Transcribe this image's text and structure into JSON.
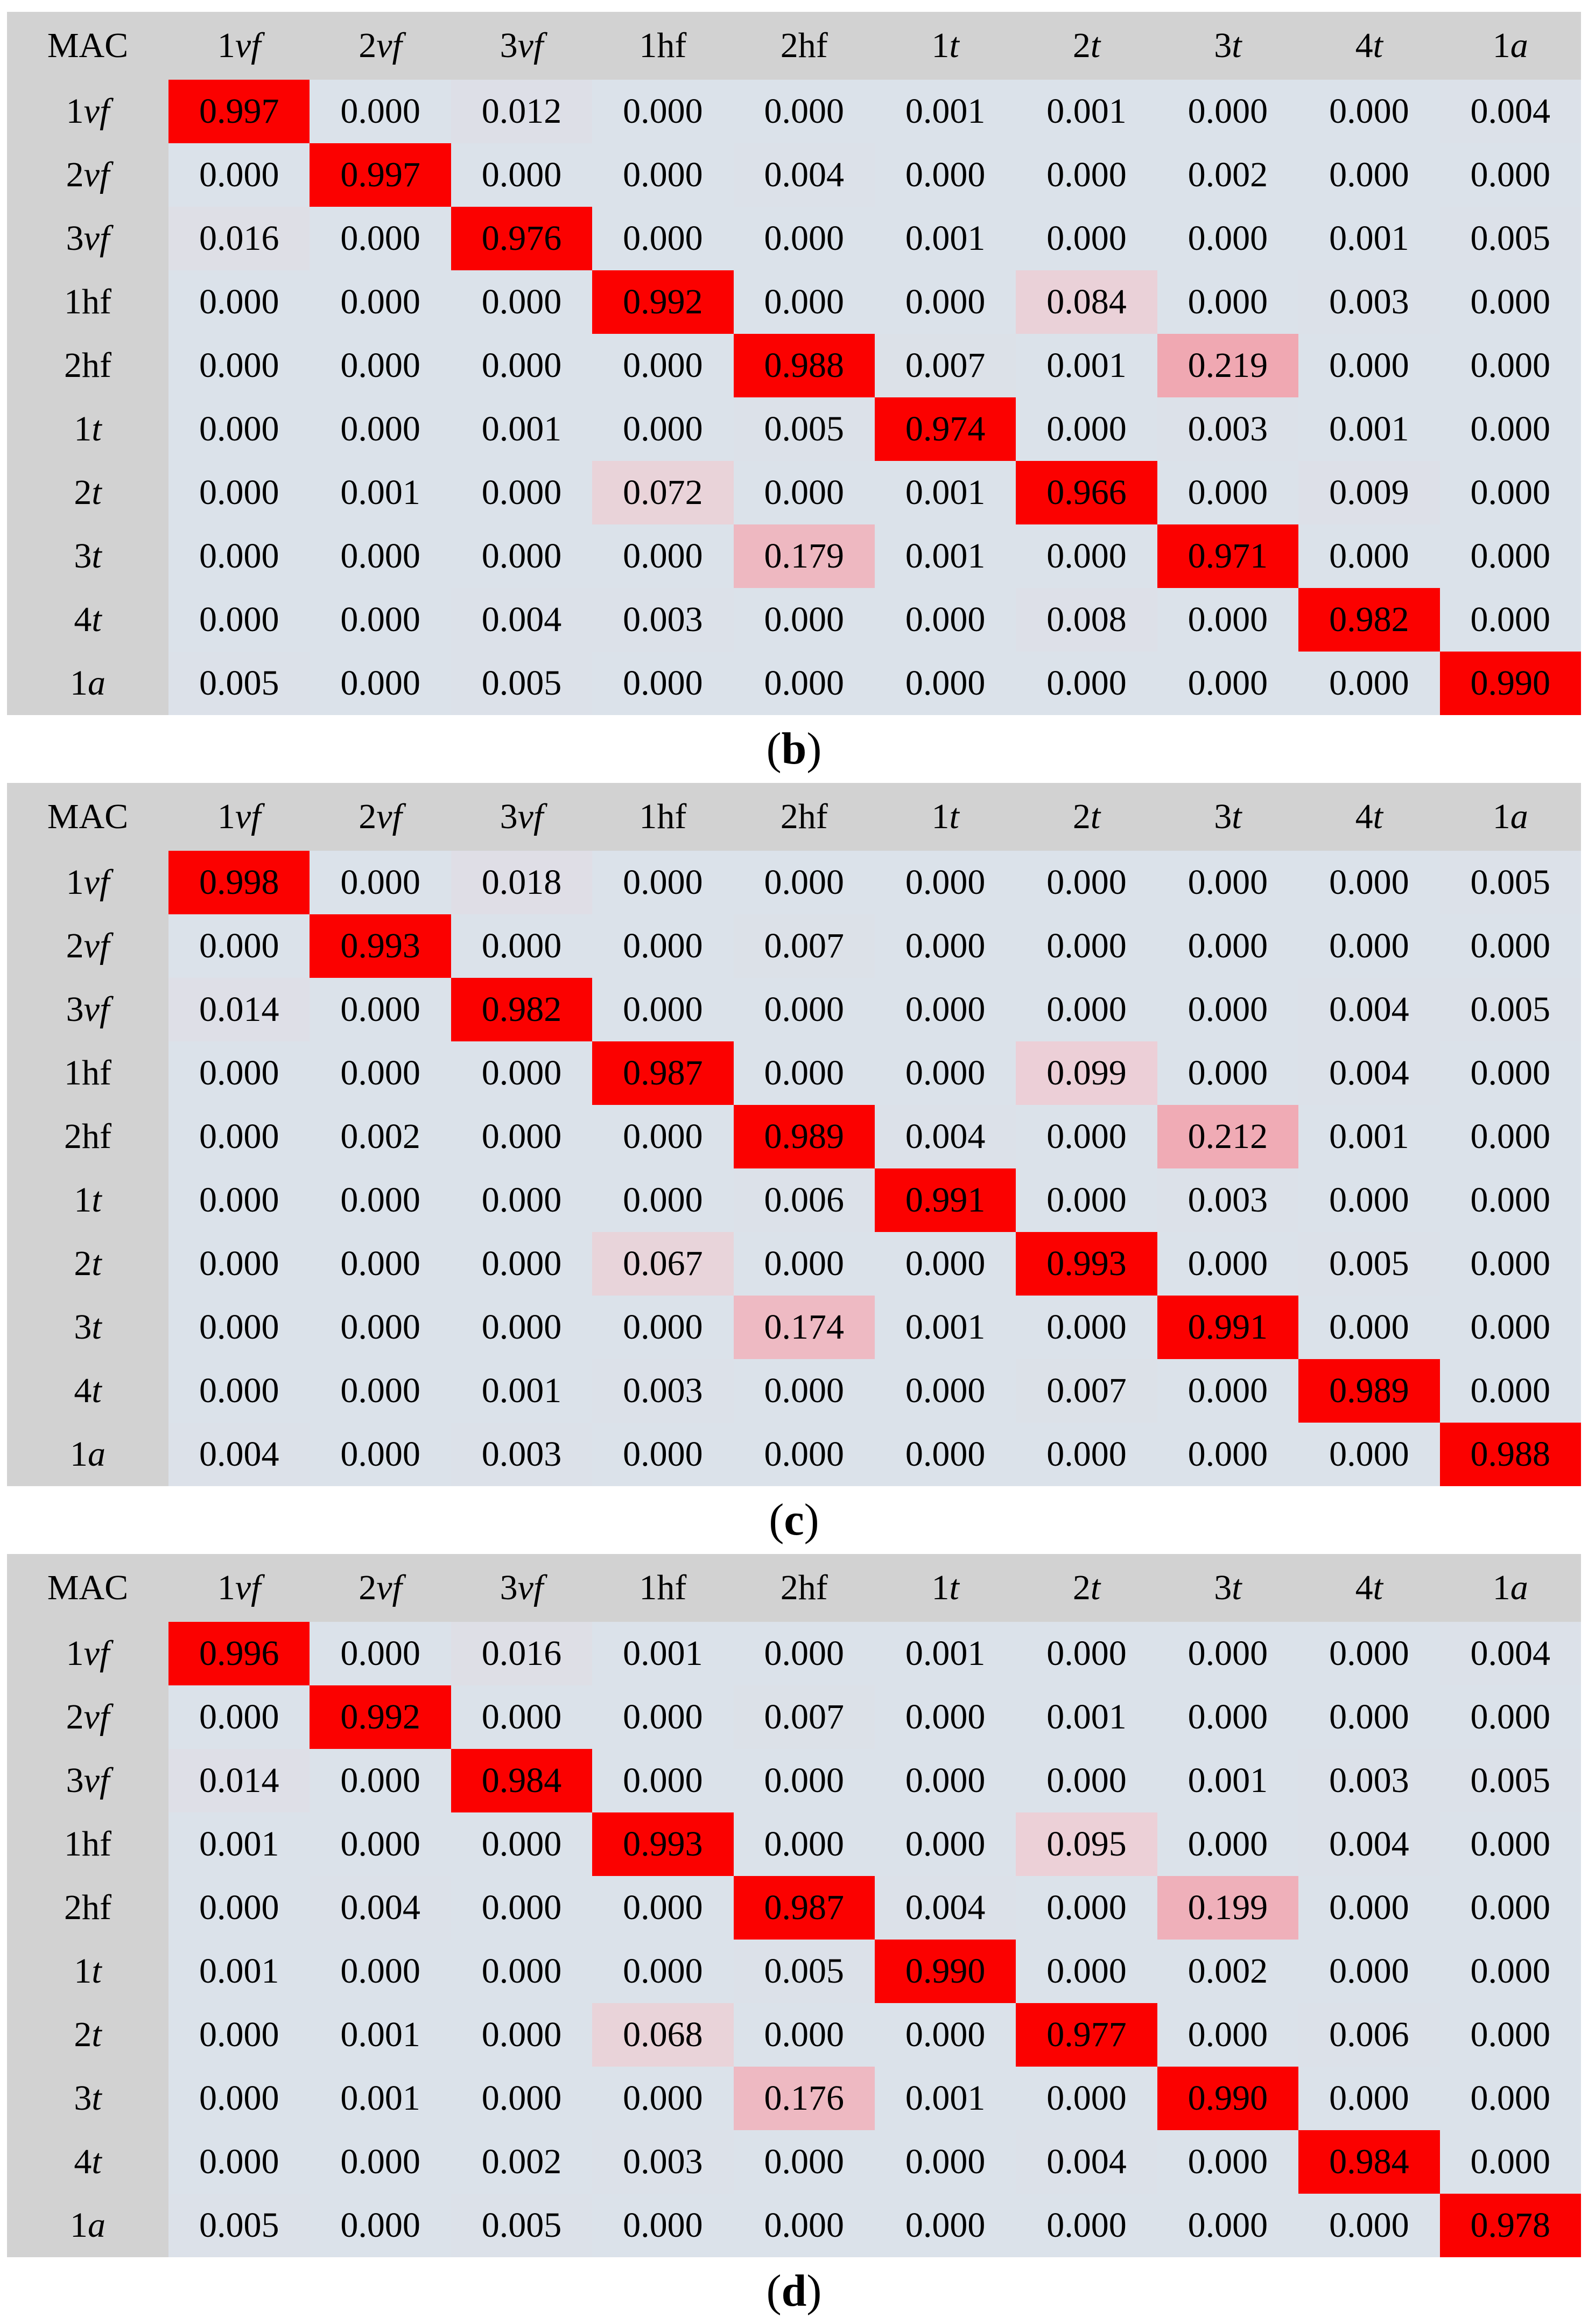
{
  "figure": {
    "description": "Three confusion matrices (panels b, c, d) with red diagonal highlights and pink off-diagonal confusion highlights",
    "corner_label": "MAC"
  },
  "colors": {
    "page_bg": "#ffffff",
    "header_bg": "#d2d2d2",
    "row_label_bg": "#d2d2d2",
    "cell_base": "#dbe2ea",
    "diagonal_red": "#fb0100",
    "pink_light": "#e9d3d9",
    "pink_medium": "#eeb8c1",
    "pink_strong": "#f0a8b2",
    "text": "#000000",
    "heatmap_stops": [
      {
        "v": 0.0,
        "c": "#dbe2ea"
      },
      {
        "v": 0.07,
        "c": "#e9d3d9"
      },
      {
        "v": 0.1,
        "c": "#eccfd7"
      },
      {
        "v": 0.18,
        "c": "#eeb8c1"
      },
      {
        "v": 0.22,
        "c": "#f0a8b2"
      },
      {
        "v": 0.95,
        "c": "#fb0100"
      },
      {
        "v": 1.0,
        "c": "#fb0100"
      }
    ]
  },
  "chart_data": [
    {
      "type": "heatmap",
      "panel": "b",
      "caption": "(b)",
      "caption_letter": "b",
      "corner_label": "MAC",
      "columns": [
        "1vf",
        "2vf",
        "3vf",
        "1hf",
        "2hf",
        "1t",
        "2t",
        "3t",
        "4t",
        "1a"
      ],
      "rows": [
        "1vf",
        "2vf",
        "3vf",
        "1hf",
        "2hf",
        "1t",
        "2t",
        "3t",
        "4t",
        "1a"
      ],
      "values": [
        [
          0.997,
          0.0,
          0.012,
          0.0,
          0.0,
          0.001,
          0.001,
          0.0,
          0.0,
          0.004
        ],
        [
          0.0,
          0.997,
          0.0,
          0.0,
          0.004,
          0.0,
          0.0,
          0.002,
          0.0,
          0.0
        ],
        [
          0.016,
          0.0,
          0.976,
          0.0,
          0.0,
          0.001,
          0.0,
          0.0,
          0.001,
          0.005
        ],
        [
          0.0,
          0.0,
          0.0,
          0.992,
          0.0,
          0.0,
          0.084,
          0.0,
          0.003,
          0.0
        ],
        [
          0.0,
          0.0,
          0.0,
          0.0,
          0.988,
          0.007,
          0.001,
          0.219,
          0.0,
          0.0
        ],
        [
          0.0,
          0.0,
          0.001,
          0.0,
          0.005,
          0.974,
          0.0,
          0.003,
          0.001,
          0.0
        ],
        [
          0.0,
          0.001,
          0.0,
          0.072,
          0.0,
          0.001,
          0.966,
          0.0,
          0.009,
          0.0
        ],
        [
          0.0,
          0.0,
          0.0,
          0.0,
          0.179,
          0.001,
          0.0,
          0.971,
          0.0,
          0.0
        ],
        [
          0.0,
          0.0,
          0.004,
          0.003,
          0.0,
          0.0,
          0.008,
          0.0,
          0.982,
          0.0
        ],
        [
          0.005,
          0.0,
          0.005,
          0.0,
          0.0,
          0.0,
          0.0,
          0.0,
          0.0,
          0.99
        ]
      ]
    },
    {
      "type": "heatmap",
      "panel": "c",
      "caption": "(c)",
      "caption_letter": "c",
      "corner_label": "MAC",
      "columns": [
        "1vf",
        "2vf",
        "3vf",
        "1hf",
        "2hf",
        "1t",
        "2t",
        "3t",
        "4t",
        "1a"
      ],
      "rows": [
        "1vf",
        "2vf",
        "3vf",
        "1hf",
        "2hf",
        "1t",
        "2t",
        "3t",
        "4t",
        "1a"
      ],
      "values": [
        [
          0.998,
          0.0,
          0.018,
          0.0,
          0.0,
          0.0,
          0.0,
          0.0,
          0.0,
          0.005
        ],
        [
          0.0,
          0.993,
          0.0,
          0.0,
          0.007,
          0.0,
          0.0,
          0.0,
          0.0,
          0.0
        ],
        [
          0.014,
          0.0,
          0.982,
          0.0,
          0.0,
          0.0,
          0.0,
          0.0,
          0.004,
          0.005
        ],
        [
          0.0,
          0.0,
          0.0,
          0.987,
          0.0,
          0.0,
          0.099,
          0.0,
          0.004,
          0.0
        ],
        [
          0.0,
          0.002,
          0.0,
          0.0,
          0.989,
          0.004,
          0.0,
          0.212,
          0.001,
          0.0
        ],
        [
          0.0,
          0.0,
          0.0,
          0.0,
          0.006,
          0.991,
          0.0,
          0.003,
          0.0,
          0.0
        ],
        [
          0.0,
          0.0,
          0.0,
          0.067,
          0.0,
          0.0,
          0.993,
          0.0,
          0.005,
          0.0
        ],
        [
          0.0,
          0.0,
          0.0,
          0.0,
          0.174,
          0.001,
          0.0,
          0.991,
          0.0,
          0.0
        ],
        [
          0.0,
          0.0,
          0.001,
          0.003,
          0.0,
          0.0,
          0.007,
          0.0,
          0.989,
          0.0
        ],
        [
          0.004,
          0.0,
          0.003,
          0.0,
          0.0,
          0.0,
          0.0,
          0.0,
          0.0,
          0.988
        ]
      ]
    },
    {
      "type": "heatmap",
      "panel": "d",
      "caption": "(d)",
      "caption_letter": "d",
      "corner_label": "MAC",
      "columns": [
        "1vf",
        "2vf",
        "3vf",
        "1hf",
        "2hf",
        "1t",
        "2t",
        "3t",
        "4t",
        "1a"
      ],
      "rows": [
        "1vf",
        "2vf",
        "3vf",
        "1hf",
        "2hf",
        "1t",
        "2t",
        "3t",
        "4t",
        "1a"
      ],
      "values": [
        [
          0.996,
          0.0,
          0.016,
          0.001,
          0.0,
          0.001,
          0.0,
          0.0,
          0.0,
          0.004
        ],
        [
          0.0,
          0.992,
          0.0,
          0.0,
          0.007,
          0.0,
          0.001,
          0.0,
          0.0,
          0.0
        ],
        [
          0.014,
          0.0,
          0.984,
          0.0,
          0.0,
          0.0,
          0.0,
          0.001,
          0.003,
          0.005
        ],
        [
          0.001,
          0.0,
          0.0,
          0.993,
          0.0,
          0.0,
          0.095,
          0.0,
          0.004,
          0.0
        ],
        [
          0.0,
          0.004,
          0.0,
          0.0,
          0.987,
          0.004,
          0.0,
          0.199,
          0.0,
          0.0
        ],
        [
          0.001,
          0.0,
          0.0,
          0.0,
          0.005,
          0.99,
          0.0,
          0.002,
          0.0,
          0.0
        ],
        [
          0.0,
          0.001,
          0.0,
          0.068,
          0.0,
          0.0,
          0.977,
          0.0,
          0.006,
          0.0
        ],
        [
          0.0,
          0.001,
          0.0,
          0.0,
          0.176,
          0.001,
          0.0,
          0.99,
          0.0,
          0.0
        ],
        [
          0.0,
          0.0,
          0.002,
          0.003,
          0.0,
          0.0,
          0.004,
          0.0,
          0.984,
          0.0
        ],
        [
          0.005,
          0.0,
          0.005,
          0.0,
          0.0,
          0.0,
          0.0,
          0.0,
          0.0,
          0.978
        ]
      ]
    }
  ]
}
